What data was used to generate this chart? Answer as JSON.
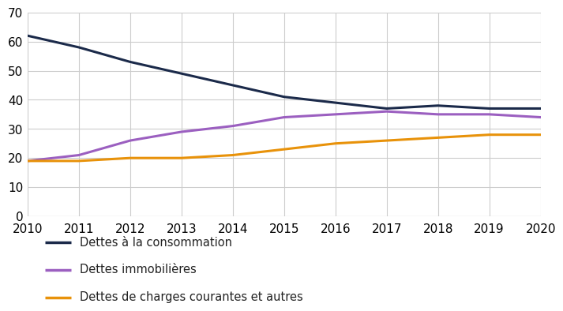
{
  "years": [
    2010,
    2011,
    2012,
    2013,
    2014,
    2015,
    2016,
    2017,
    2018,
    2019,
    2020
  ],
  "consommation": [
    62,
    58,
    53,
    49,
    45,
    41,
    39,
    37,
    38,
    37,
    37
  ],
  "immobilieres": [
    19,
    21,
    26,
    29,
    31,
    34,
    35,
    36,
    35,
    35,
    34
  ],
  "charges": [
    19,
    19,
    20,
    20,
    21,
    23,
    25,
    26,
    27,
    28,
    28
  ],
  "color_consommation": "#1b2a4a",
  "color_immobilieres": "#9b5fc0",
  "color_charges": "#e8920a",
  "ylim": [
    0,
    70
  ],
  "yticks": [
    0,
    10,
    20,
    30,
    40,
    50,
    60,
    70
  ],
  "legend_labels": [
    "Dettes à la consommation",
    "Dettes immobilières",
    "Dettes de charges courantes et autres"
  ],
  "background_color": "#ffffff",
  "grid_color": "#cccccc",
  "line_width": 2.2,
  "tick_fontsize": 11,
  "legend_fontsize": 10.5
}
